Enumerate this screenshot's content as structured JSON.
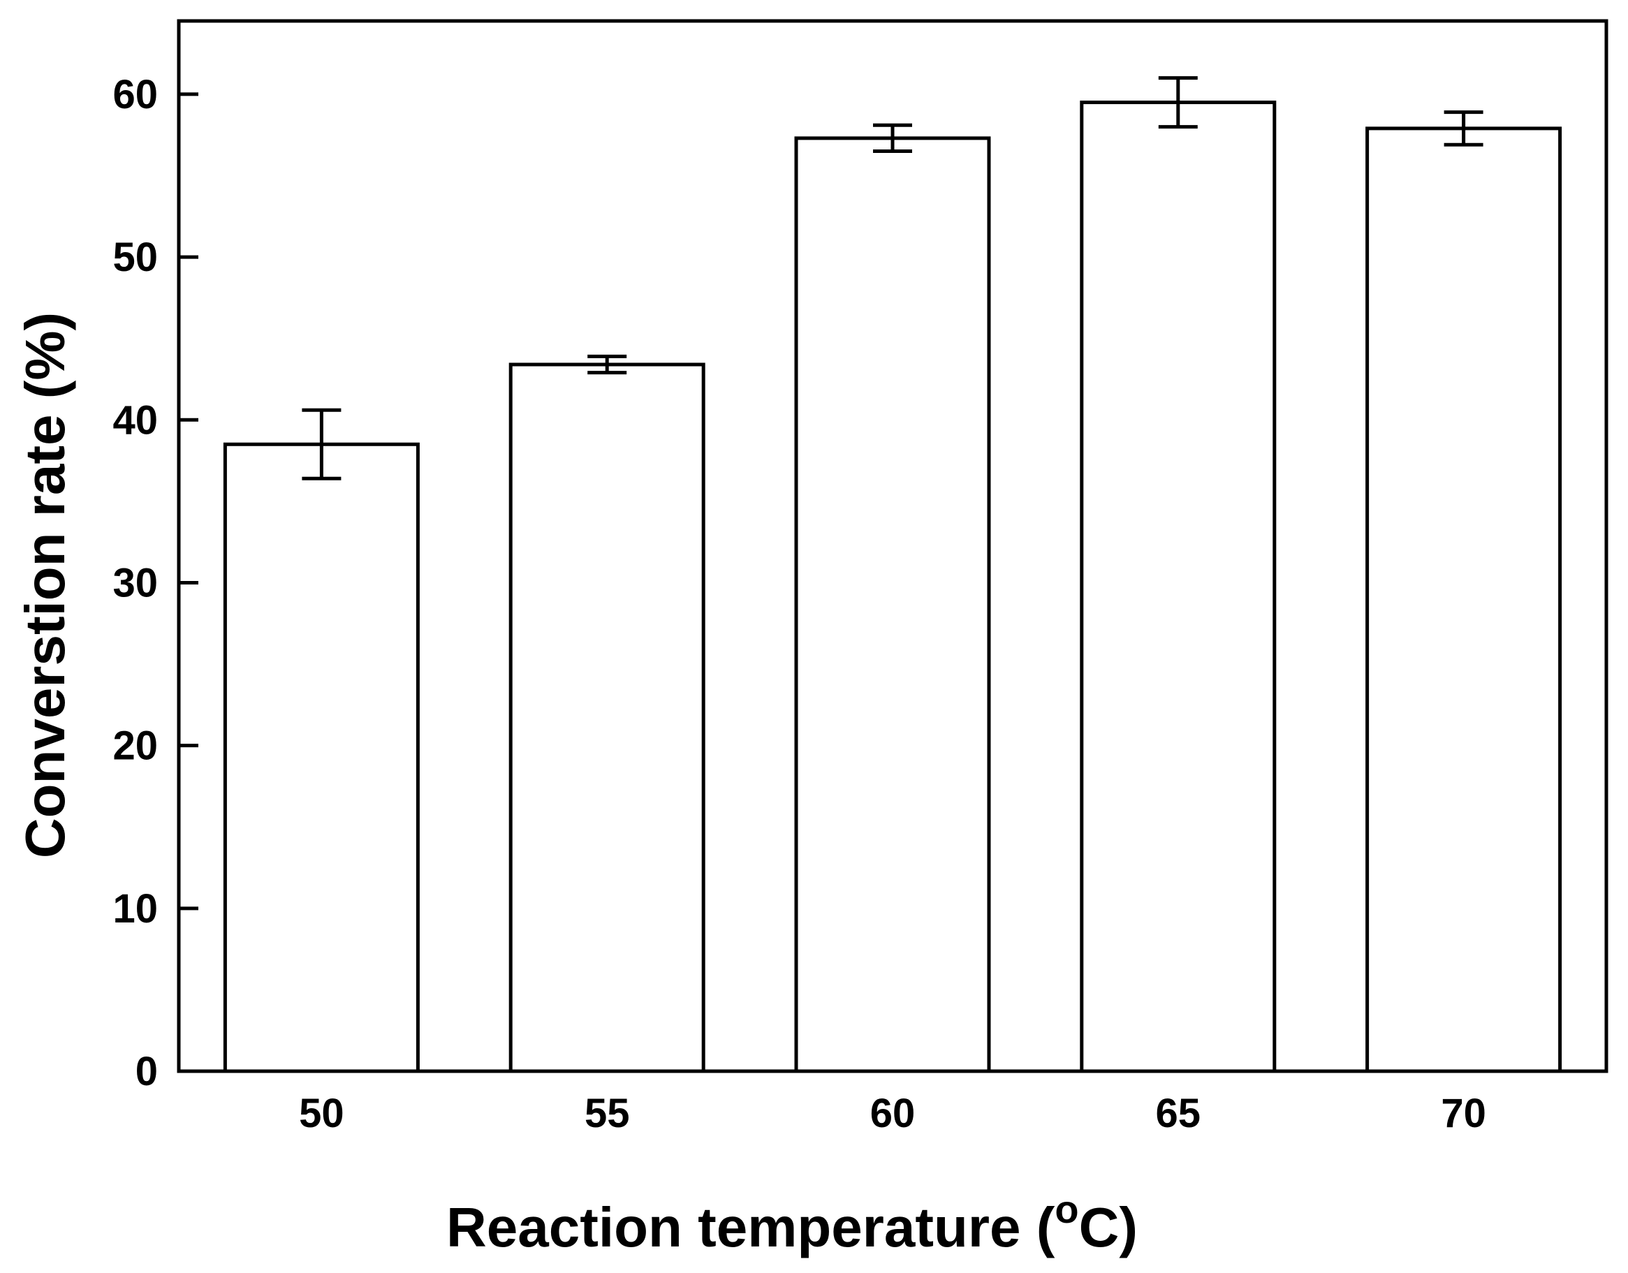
{
  "chart_data": {
    "type": "bar",
    "title": "",
    "xlabel": "Reaction temperature (",
    "xlabel_superscript": "o",
    "xlabel_suffix": "C)",
    "ylabel": "Converstion rate (%)",
    "categories": [
      "50",
      "55",
      "60",
      "65",
      "70"
    ],
    "values": [
      38.5,
      43.4,
      57.3,
      59.5,
      57.9
    ],
    "errors": [
      2.1,
      0.5,
      0.8,
      1.5,
      1.0
    ],
    "ylim": [
      0,
      64.5
    ],
    "yticks": [
      0,
      10,
      20,
      30,
      40,
      50,
      60
    ],
    "grid": false,
    "legend": "none"
  }
}
